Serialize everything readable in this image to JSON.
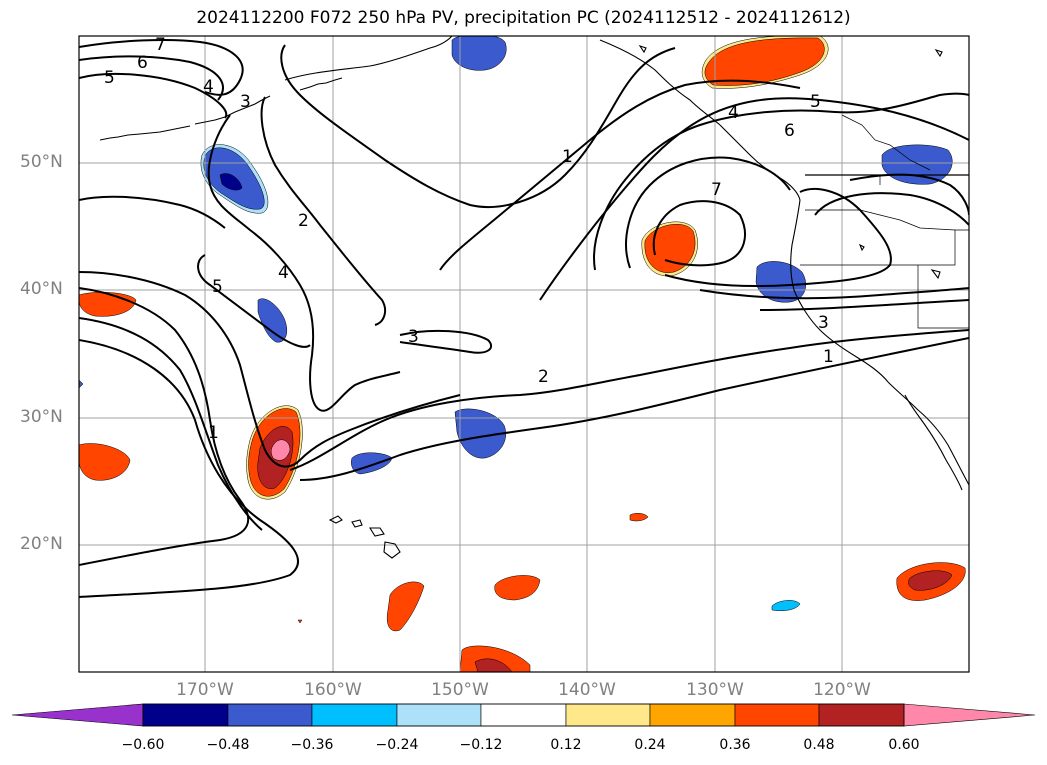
{
  "title": "2024112200 F072 250 hPa PV, precipitation PC (2024112512 - 2024112612)",
  "lat_labels": [
    "50°N",
    "40°N",
    "30°N",
    "20°N"
  ],
  "lon_labels": [
    "170°W",
    "160°W",
    "150°W",
    "140°W",
    "130°W",
    "120°W"
  ],
  "colorbar": {
    "ticks": [
      "−0.60",
      "−0.48",
      "−0.36",
      "−0.24",
      "−0.12",
      "0.12",
      "0.24",
      "0.36",
      "0.48",
      "0.60"
    ],
    "colors": [
      "#9932CC",
      "#00008B",
      "#3A5ACD",
      "#00BFFF",
      "#ADE1FA",
      "#FFFFFF",
      "#FFE88A",
      "#FFA500",
      "#FF4500",
      "#B22222",
      "#FF88AA"
    ]
  },
  "contour_labels": [
    "7",
    "6",
    "5",
    "4",
    "3",
    "2",
    "4",
    "5",
    "1",
    "3",
    "2",
    "1",
    "5",
    "4",
    "6",
    "7",
    "3",
    "1"
  ],
  "colors": {
    "contour": "#000000",
    "grid": "#a0a0a0",
    "coast": "#000000",
    "label_gray": "#808080"
  }
}
